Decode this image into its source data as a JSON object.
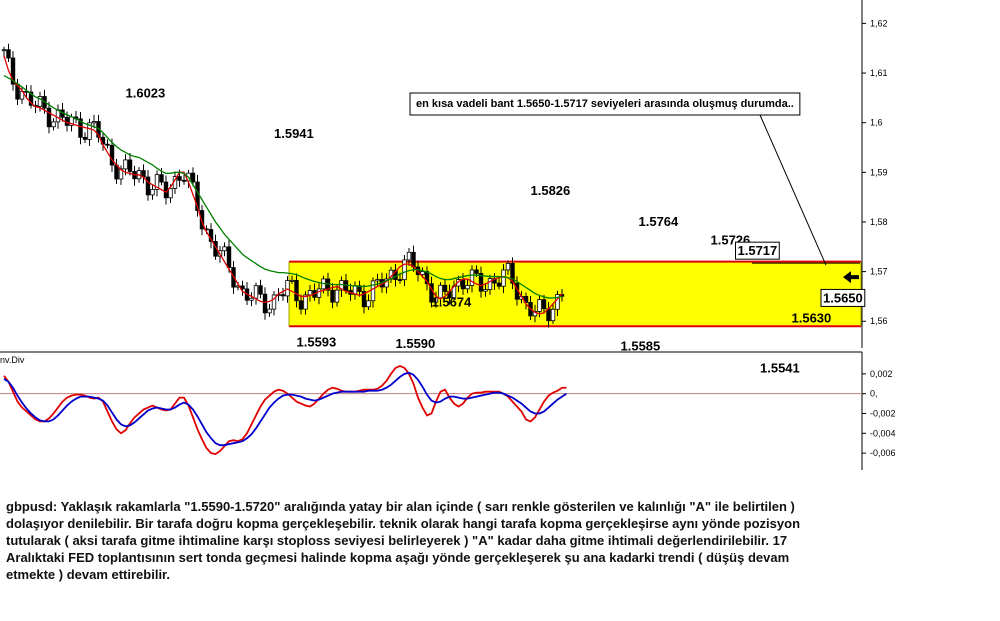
{
  "chart_data": [
    {
      "type": "candlestick",
      "symbol": "gbpusd",
      "y_ticks": [
        "1,62",
        "1,61",
        "1,6",
        "1,59",
        "1,58",
        "1,57",
        "1,56"
      ],
      "ylim": [
        1.5532,
        1.6227
      ],
      "price_annotations": [
        {
          "label": "1.6023",
          "x_bar": 31,
          "y": 1.6023
        },
        {
          "label": "1.5941",
          "x_bar": 64,
          "y": 1.5941
        },
        {
          "label": "1.5826",
          "x_bar": 121,
          "y": 1.5826
        },
        {
          "label": "1.5674",
          "x_bar": 99,
          "y": 1.5674
        },
        {
          "label": "1.5764",
          "x_bar": 145,
          "y": 1.5764
        },
        {
          "label": "1.5726",
          "x_bar": 161,
          "y": 1.5726
        },
        {
          "label": "1.5717",
          "x_bar": 167,
          "y": 1.5717
        },
        {
          "label": "1.5650",
          "x_bar": 186,
          "y": 1.565
        },
        {
          "label": "1.5630",
          "x_bar": 179,
          "y": 1.563
        },
        {
          "label": "1.5593",
          "x_bar": 69,
          "y": 1.5593
        },
        {
          "label": "1.5590",
          "x_bar": 91,
          "y": 1.559
        },
        {
          "label": "1.5585",
          "x_bar": 141,
          "y": 1.5585
        },
        {
          "label": "1.5541",
          "x_bar": 172,
          "y": 1.5541
        }
      ],
      "range_band": {
        "low": 1.559,
        "high": 1.572,
        "fill": "#ffff00",
        "border": "#e00000"
      },
      "callout_text": "en kısa vadeli bant 1.5650-1.5717 seviyeleri arasında oluşmuş durumda..",
      "series": [
        {
          "color": "#e00000",
          "values": [
            1.6135,
            1.6105,
            1.6085,
            1.6075,
            1.6065,
            1.605,
            1.604,
            1.6032,
            1.603,
            1.6025,
            1.602,
            1.6015,
            1.601,
            1.6005,
            1.6,
            1.5998,
            1.5995,
            1.5992,
            1.599,
            1.5988,
            1.5985,
            1.5975,
            1.5955,
            1.594,
            1.5925,
            1.5915,
            1.5905,
            1.59,
            1.5898,
            1.5895,
            1.5895,
            1.589,
            1.588,
            1.5875,
            1.587,
            1.5865,
            1.586,
            1.587,
            1.5885,
            1.59,
            1.59,
            1.588,
            1.5855,
            1.583,
            1.58,
            1.578,
            1.5765,
            1.575,
            1.5735,
            1.572,
            1.5705,
            1.569,
            1.5675,
            1.566,
            1.5655,
            1.565,
            1.5645,
            1.564,
            1.5638,
            1.564,
            1.5645,
            1.5655,
            1.566,
            1.5665,
            1.566,
            1.5655,
            1.565,
            1.565,
            1.5652,
            1.5655,
            1.566,
            1.5662,
            1.5665,
            1.5668,
            1.567,
            1.5665,
            1.566,
            1.5658,
            1.5655,
            1.5652,
            1.5655,
            1.566,
            1.5665,
            1.567,
            1.5675,
            1.568,
            1.569,
            1.57,
            1.571,
            1.5715,
            1.5715,
            1.571,
            1.57,
            1.569,
            1.568,
            1.5665,
            1.565,
            1.5645,
            1.565,
            1.566,
            1.567,
            1.568,
            1.5685,
            1.5685,
            1.568,
            1.5675,
            1.5672,
            1.5675,
            1.568,
            1.5685,
            1.5688,
            1.569,
            1.5688,
            1.568,
            1.5665,
            1.565,
            1.5635,
            1.5625,
            1.5618,
            1.5615,
            1.5617,
            1.5625,
            1.5635,
            1.5645,
            1.5655
          ]
        },
        {
          "color": "#008000",
          "values": [
            1.6095,
            1.609,
            1.6085,
            1.6078,
            1.6072,
            1.6065,
            1.6058,
            1.6052,
            1.6048,
            1.6042,
            1.6036,
            1.603,
            1.6025,
            1.602,
            1.6016,
            1.6012,
            1.6008,
            1.6003,
            1.5998,
            1.5995,
            1.5992,
            1.5988,
            1.598,
            1.597,
            1.596,
            1.5952,
            1.5945,
            1.594,
            1.5935,
            1.5932,
            1.593,
            1.5925,
            1.592,
            1.5915,
            1.5908,
            1.5902,
            1.5898,
            1.5898,
            1.59,
            1.59,
            1.5898,
            1.589,
            1.5875,
            1.586,
            1.5845,
            1.583,
            1.5815,
            1.58,
            1.5788,
            1.5775,
            1.5765,
            1.5755,
            1.5745,
            1.5735,
            1.5728,
            1.5722,
            1.5716,
            1.571,
            1.5705,
            1.5702,
            1.57,
            1.5698,
            1.5698,
            1.5697,
            1.5696,
            1.5694,
            1.569,
            1.5686,
            1.5683,
            1.568,
            1.5678,
            1.5676,
            1.5675,
            1.5674,
            1.5674,
            1.5674,
            1.5673,
            1.5672,
            1.5671,
            1.567,
            1.567,
            1.5671,
            1.5673,
            1.5675,
            1.5678,
            1.5682,
            1.5686,
            1.569,
            1.5695,
            1.5699,
            1.5702,
            1.5704,
            1.5704,
            1.5702,
            1.5699,
            1.5695,
            1.569,
            1.5686,
            1.5684,
            1.5684,
            1.5686,
            1.5688,
            1.569,
            1.5692,
            1.5693,
            1.5693,
            1.5692,
            1.5691,
            1.569,
            1.569,
            1.569,
            1.5689,
            1.5688,
            1.5685,
            1.568,
            1.5674,
            1.5668,
            1.5662,
            1.5656,
            1.5652,
            1.5649,
            1.5647,
            1.5647,
            1.5648,
            1.565
          ]
        }
      ]
    },
    {
      "type": "line",
      "indicator_label": "nv.Div",
      "y_ticks": [
        "0,002",
        "0,",
        "-0,002",
        "-0,004",
        "-0,006"
      ],
      "ylim": [
        -0.0069,
        0.0034
      ],
      "series": [
        {
          "color": "#e00000",
          "values": [
            0.0018,
            0.0012,
            0.0002,
            -0.0008,
            -0.0014,
            -0.0018,
            -0.0022,
            -0.0026,
            -0.0028,
            -0.0028,
            -0.0025,
            -0.002,
            -0.0014,
            -0.0008,
            -0.0004,
            -0.0002,
            -0.0001,
            -0.0001,
            -0.0002,
            -0.0004,
            -0.0005,
            -0.0004,
            -0.0008,
            -0.0018,
            -0.0028,
            -0.0036,
            -0.004,
            -0.0037,
            -0.003,
            -0.0024,
            -0.002,
            -0.0016,
            -0.0014,
            -0.0012,
            -0.0014,
            -0.0016,
            -0.0017,
            -0.0016,
            -0.001,
            -0.0004,
            -0.0004,
            -0.0012,
            -0.0024,
            -0.0036,
            -0.0046,
            -0.0055,
            -0.006,
            -0.0061,
            -0.0058,
            -0.0053,
            -0.0048,
            -0.0047,
            -0.0048,
            -0.0046,
            -0.004,
            -0.0031,
            -0.0022,
            -0.0013,
            -0.0006,
            -0.0002,
            0.0002,
            0.0004,
            0.0003,
            0.0,
            -0.0004,
            -0.0008,
            -0.001,
            -0.0012,
            -0.0013,
            -0.001,
            -0.0005,
            0.0,
            0.0004,
            0.0006,
            0.0005,
            0.0003,
            0.0002,
            0.0002,
            0.0002,
            0.0003,
            0.0004,
            0.0004,
            0.0004,
            0.0005,
            0.0008,
            0.0013,
            0.002,
            0.0026,
            0.0028,
            0.0026,
            0.002,
            0.001,
            -0.0004,
            -0.0014,
            -0.0022,
            -0.002,
            -0.0008,
            0.0002,
            0.0004,
            -0.0004,
            -0.001,
            -0.0013,
            -0.001,
            -0.0004,
            0.0,
            0.0001,
            0.0001,
            0.0002,
            0.0002,
            0.0002,
            0.0002,
            0.0,
            -0.0003,
            -0.0008,
            -0.0013,
            -0.0018,
            -0.0026,
            -0.0028,
            -0.0024,
            -0.0016,
            -0.0008,
            -0.0002,
            0.0001,
            0.0003,
            0.0006,
            0.0006
          ]
        },
        {
          "color": "#0000cc",
          "values": [
            0.0015,
            0.0012,
            0.0006,
            -0.0002,
            -0.0009,
            -0.0015,
            -0.002,
            -0.0024,
            -0.0027,
            -0.0028,
            -0.0028,
            -0.0026,
            -0.0022,
            -0.0017,
            -0.0012,
            -0.0008,
            -0.0005,
            -0.0003,
            -0.0003,
            -0.0003,
            -0.0004,
            -0.0005,
            -0.0007,
            -0.0012,
            -0.0019,
            -0.0026,
            -0.0031,
            -0.0033,
            -0.0032,
            -0.0029,
            -0.0025,
            -0.0021,
            -0.0017,
            -0.0015,
            -0.0014,
            -0.0015,
            -0.0016,
            -0.0016,
            -0.0014,
            -0.0011,
            -0.0009,
            -0.0011,
            -0.0016,
            -0.0023,
            -0.0031,
            -0.0039,
            -0.0045,
            -0.005,
            -0.0052,
            -0.0052,
            -0.0051,
            -0.005,
            -0.0049,
            -0.0048,
            -0.0045,
            -0.0041,
            -0.0035,
            -0.0028,
            -0.0021,
            -0.0014,
            -0.0009,
            -0.0005,
            -0.0002,
            -0.0001,
            -0.0001,
            -0.0002,
            -0.0003,
            -0.0005,
            -0.0006,
            -0.0007,
            -0.0006,
            -0.0004,
            -0.0002,
            0.0,
            0.0001,
            0.0002,
            0.0002,
            0.0002,
            0.0002,
            0.0002,
            0.0002,
            0.0003,
            0.0003,
            0.0003,
            0.0004,
            0.0006,
            0.0009,
            0.0013,
            0.0017,
            0.002,
            0.0021,
            0.0019,
            0.0014,
            0.0007,
            -0.0001,
            -0.0007,
            -0.0009,
            -0.0008,
            -0.0005,
            -0.0003,
            -0.0003,
            -0.0004,
            -0.0005,
            -0.0005,
            -0.0004,
            -0.0003,
            -0.0002,
            -0.0001,
            0.0,
            0.0001,
            0.0001,
            0.0,
            -0.0002,
            -0.0004,
            -0.0007,
            -0.001,
            -0.0014,
            -0.0018,
            -0.002,
            -0.002,
            -0.0018,
            -0.0014,
            -0.001,
            -0.0006,
            -0.0003,
            0.0
          ]
        }
      ]
    }
  ],
  "commentary": {
    "line1": "gbpusd: Yaklaşık rakamlarla \"1.5590-1.5720\" aralığında yatay bir alan içinde ( sarı renkle gösterilen ve kalınlığı \"A\" ile belirtilen )",
    "line2": "dolaşıyor denilebilir. Bir tarafa doğru kopma gerçekleşebilir. teknik olarak hangi tarafa kopma gerçekleşirse aynı yönde pozisyon",
    "line3": "tutularak ( aksi tarafa gitme ihtimaline karşı stoploss seviyesi belirleyerek ) \"A\" kadar daha gitme ihtimali değerlendirilebilir. 17",
    "line4": "Aralıktaki FED toplantısının sert tonda geçmesi halinde kopma aşağı yönde gerçekleşerek şu ana kadarki trendi ( düşüş devam",
    "line5": "etmekte ) devam ettirebilir."
  }
}
